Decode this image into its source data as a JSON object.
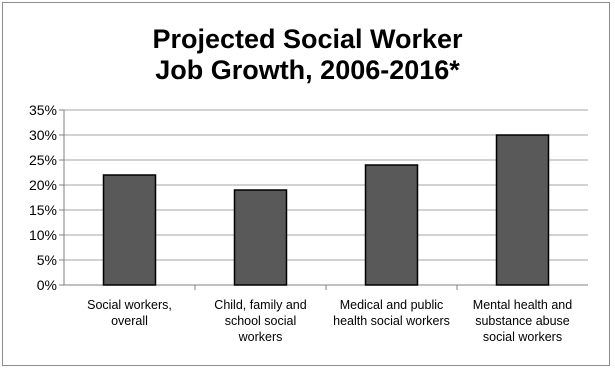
{
  "chart_data": {
    "type": "bar",
    "title_lines": [
      "Projected Social Worker",
      "Job Growth, 2006-2016*"
    ],
    "categories": [
      [
        "Social workers,",
        "overall"
      ],
      [
        "Child, family and",
        "school social",
        "workers"
      ],
      [
        "Medical and public",
        "health social workers"
      ],
      [
        "Mental health and",
        "substance abuse",
        "social workers"
      ]
    ],
    "values": [
      22,
      19,
      24,
      30
    ],
    "unit": "%",
    "ylim": [
      0,
      35
    ],
    "yticks": [
      "0%",
      "5%",
      "10%",
      "15%",
      "20%",
      "25%",
      "30%",
      "35%"
    ],
    "grid": true,
    "legend": "none",
    "colors": {
      "bar_fill": "#595959",
      "bar_stroke": "#000000",
      "grid": "#a6a6a6",
      "axis": "#808080"
    }
  }
}
